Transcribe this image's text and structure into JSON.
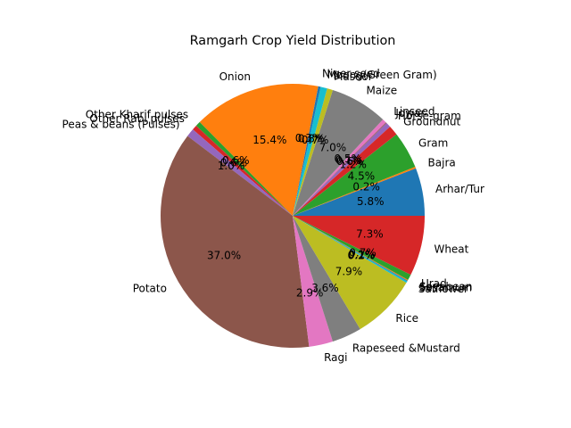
{
  "chart_data": {
    "type": "pie",
    "title": "Ramgarh Crop Yield Distribution",
    "start_angle_deg": 0,
    "direction": "counterclockwise",
    "legend": "none",
    "slices": [
      {
        "label": "Arhar/Tur",
        "value": 5.8,
        "pct_label": "5.8%",
        "color": "#1f77b4"
      },
      {
        "label": "Bajra",
        "value": 0.2,
        "pct_label": "0.2%",
        "color": "#ff7f0e"
      },
      {
        "label": "Gram",
        "value": 4.5,
        "pct_label": "4.5%",
        "color": "#2ca02c"
      },
      {
        "label": "Groundnut",
        "value": 1.2,
        "pct_label": "1.2%",
        "color": "#d62728"
      },
      {
        "label": "Horse-gram",
        "value": 0.6,
        "pct_label": "0.6%",
        "color": "#9467bd"
      },
      {
        "label": "Jowar",
        "value": 0.1,
        "pct_label": "0.1%",
        "color": "#8c564b"
      },
      {
        "label": "Linseed",
        "value": 0.5,
        "pct_label": "0.5%",
        "color": "#e377c2"
      },
      {
        "label": "Maize",
        "value": 7.0,
        "pct_label": "7.0%",
        "color": "#7f7f7f"
      },
      {
        "label": "Masoor",
        "value": 0.7,
        "pct_label": "0.7%",
        "color": "#bcbd22"
      },
      {
        "label": "Moong(Green Gram)",
        "value": 0.8,
        "pct_label": "0.8%",
        "color": "#17becf"
      },
      {
        "label": "Niger seed",
        "value": 0.3,
        "pct_label": "0.3%",
        "color": "#1f77b4"
      },
      {
        "label": "Onion",
        "value": 15.4,
        "pct_label": "15.4%",
        "color": "#ff7f0e"
      },
      {
        "label": "Other Kharif pulses",
        "value": 0.6,
        "pct_label": "0.6%",
        "color": "#2ca02c"
      },
      {
        "label": "Other Rabi pulses",
        "value": 0.6,
        "pct_label": "0.6%",
        "color": "#d62728"
      },
      {
        "label": "Peas & beans (Pulses)",
        "value": 1.0,
        "pct_label": "1.0%",
        "color": "#9467bd"
      },
      {
        "label": "Potato",
        "value": 37.0,
        "pct_label": "37.0%",
        "color": "#8c564b"
      },
      {
        "label": "Ragi",
        "value": 2.9,
        "pct_label": "2.9%",
        "color": "#e377c2"
      },
      {
        "label": "Rapeseed &Mustard",
        "value": 3.6,
        "pct_label": "3.6%",
        "color": "#7f7f7f"
      },
      {
        "label": "Rice",
        "value": 7.9,
        "pct_label": "7.9%",
        "color": "#bcbd22"
      },
      {
        "label": "Safflower",
        "value": 0.2,
        "pct_label": "0.2%",
        "color": "#17becf"
      },
      {
        "label": "Sesamum",
        "value": 0.1,
        "pct_label": "0.1%",
        "color": "#1f77b4"
      },
      {
        "label": "Soyabean",
        "value": 0.1,
        "pct_label": "0.1%",
        "color": "#ff7f0e"
      },
      {
        "label": "Urad",
        "value": 0.7,
        "pct_label": "0.7%",
        "color": "#2ca02c"
      },
      {
        "label": "Wheat",
        "value": 7.3,
        "pct_label": "7.3%",
        "color": "#d62728"
      }
    ]
  }
}
